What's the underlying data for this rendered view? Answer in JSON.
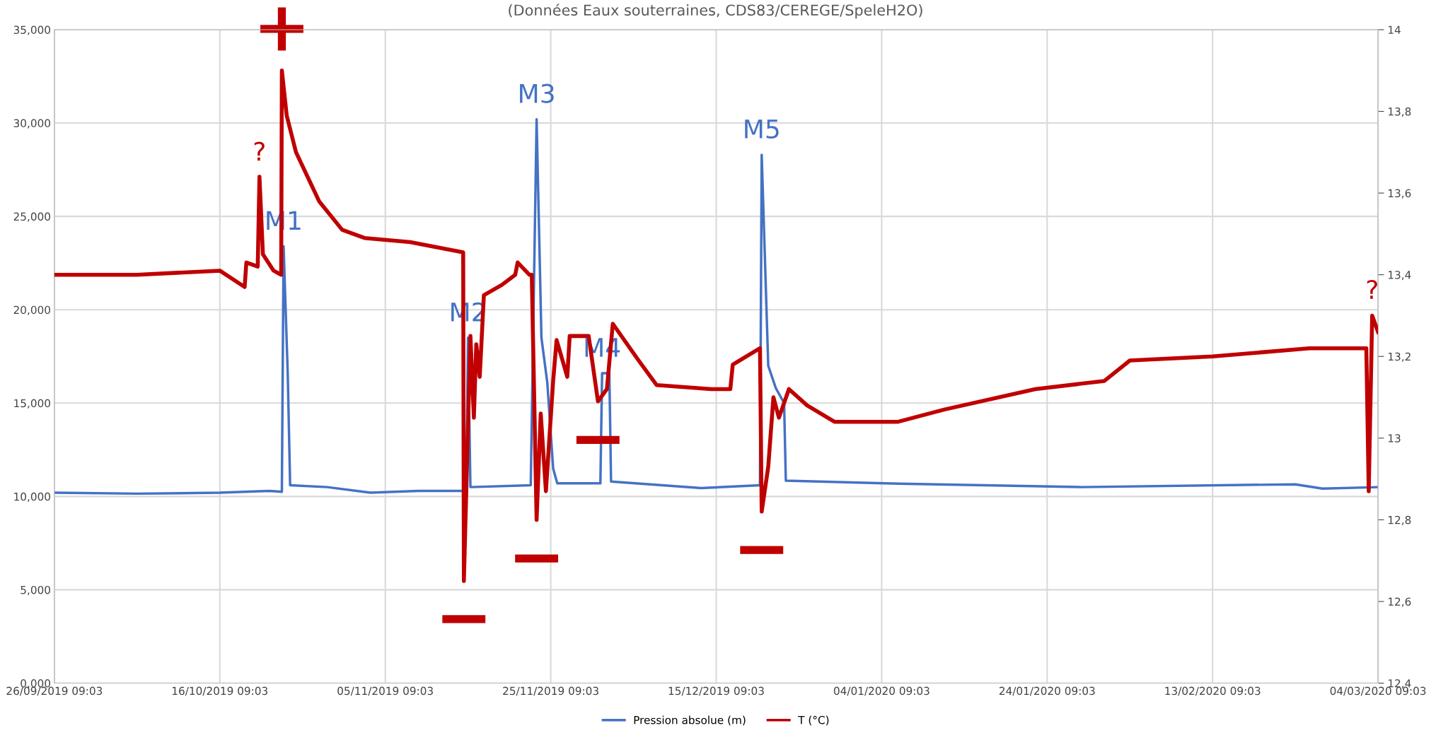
{
  "chart_data": {
    "type": "line",
    "subtitle": "(Données Eaux souterraines, CDS83/CEREGE/SpeleH2O)",
    "xlim": [
      "2019-09-26T09:03",
      "2020-03-04T09:03"
    ],
    "xticks": [
      {
        "value": "2019-09-26T09:03",
        "label": "26/09/2019 09:03"
      },
      {
        "value": "2019-10-16T09:03",
        "label": "16/10/2019 09:03"
      },
      {
        "value": "2019-11-05T09:03",
        "label": "05/11/2019 09:03"
      },
      {
        "value": "2019-11-25T09:03",
        "label": "25/11/2019 09:03"
      },
      {
        "value": "2019-12-15T09:03",
        "label": "15/12/2019 09:03"
      },
      {
        "value": "2020-01-04T09:03",
        "label": "04/01/2020 09:03"
      },
      {
        "value": "2020-01-24T09:03",
        "label": "24/01/2020 09:03"
      },
      {
        "value": "2020-02-13T09:03",
        "label": "13/02/2020 09:03"
      },
      {
        "value": "2020-03-04T09:03",
        "label": "04/03/2020 09:03"
      }
    ],
    "ylim": [
      0,
      35
    ],
    "yticks": [
      {
        "value": 0,
        "label": "0,000"
      },
      {
        "value": 5,
        "label": "5,000"
      },
      {
        "value": 10,
        "label": "10,000"
      },
      {
        "value": 15,
        "label": "15,000"
      },
      {
        "value": 20,
        "label": "20,000"
      },
      {
        "value": 25,
        "label": "25,000"
      },
      {
        "value": 30,
        "label": "30,000"
      },
      {
        "value": 35,
        "label": "35,000"
      }
    ],
    "y2lim": [
      12.4,
      14
    ],
    "y2ticks": [
      {
        "value": 12.4,
        "label": "12,4"
      },
      {
        "value": 12.6,
        "label": "12,6"
      },
      {
        "value": 12.8,
        "label": "12,8"
      },
      13,
      {
        "value": 13.2,
        "label": "13,2"
      },
      {
        "value": 13.4,
        "label": "13,4"
      },
      {
        "value": 13.6,
        "label": "13,6"
      },
      {
        "value": 13.8,
        "label": "13,8"
      },
      14
    ],
    "grid": true,
    "legend": "bottom",
    "marker": "none",
    "line_style": "solid",
    "series": [
      {
        "name": "Pression absolue (m)",
        "color": "#4472c4",
        "x": [
          "2019-09-26T09:03",
          "2019-10-06T09:00",
          "2019-10-16T09:00",
          "2019-10-22T09:00",
          "2019-10-23T21:00",
          "2019-10-24T02:00",
          "2019-10-24T14:00",
          "2019-10-24T21:00",
          "2019-10-29T09:00",
          "2019-11-03T14:00",
          "2019-11-09T09:00",
          "2019-11-15T04:00",
          "2019-11-15T09:00",
          "2019-11-15T16:00",
          "2019-11-22T23:00",
          "2019-11-23T16:00",
          "2019-11-24T06:00",
          "2019-11-24T23:00",
          "2019-11-25T16:00",
          "2019-11-26T04:00",
          "2019-12-01T09:00",
          "2019-12-01T14:00",
          "2019-12-02T11:00",
          "2019-12-02T16:00",
          "2019-12-13T14:00",
          "2019-12-20T16:00",
          "2019-12-20T21:00",
          "2019-12-21T16:00",
          "2019-12-22T14:00",
          "2019-12-23T14:00",
          "2019-12-23T19:00",
          "2020-01-04T18:00",
          "2020-01-28T12:00",
          "2020-02-23T09:00",
          "2020-02-26T16:00",
          "2020-03-04T09:03"
        ],
        "values": [
          10.2,
          10.15,
          10.2,
          10.3,
          10.25,
          23.4,
          16.6,
          10.6,
          10.5,
          10.2,
          10.3,
          10.3,
          18.5,
          10.5,
          10.6,
          30.2,
          18.5,
          16.1,
          11.5,
          10.7,
          10.7,
          16.6,
          16.6,
          10.8,
          10.45,
          10.6,
          28.3,
          17.0,
          15.8,
          15.0,
          10.85,
          10.7,
          10.5,
          10.65,
          10.42,
          10.5
        ]
      },
      {
        "name": "T (°C)",
        "color": "#c00000",
        "axis": "y2",
        "x": [
          "2019-09-26T09:03",
          "2019-10-06T09:00",
          "2019-10-16T09:00",
          "2019-10-19T09:00",
          "2019-10-19T14:00",
          "2019-10-20T23:00",
          "2019-10-21T04:00",
          "2019-10-21T14:00",
          "2019-10-22T21:00",
          "2019-10-23T19:00",
          "2019-10-23T21:00",
          "2019-10-24T11:00",
          "2019-10-25T14:00",
          "2019-10-28T09:00",
          "2019-10-31T04:00",
          "2019-11-02T21:00",
          "2019-11-08T09:00",
          "2019-11-14T19:00",
          "2019-11-14T21:00",
          "2019-11-15T16:00",
          "2019-11-16T02:00",
          "2019-11-16T09:00",
          "2019-11-16T19:00",
          "2019-11-17T07:00",
          "2019-11-19T11:00",
          "2019-11-21T02:00",
          "2019-11-21T09:00",
          "2019-11-22T19:00",
          "2019-11-23T02:00",
          "2019-11-23T16:00",
          "2019-11-24T04:00",
          "2019-11-24T19:00",
          "2019-11-25T16:00",
          "2019-11-26T02:00",
          "2019-11-27T09:00",
          "2019-11-27T16:00",
          "2019-11-29T23:00",
          "2019-12-01T02:00",
          "2019-12-02T04:00",
          "2019-12-02T21:00",
          "2019-12-06T00:00",
          "2019-12-08T04:00",
          "2019-12-14T19:00",
          "2019-12-17T02:00",
          "2019-12-17T09:00",
          "2019-12-20T16:00",
          "2019-12-20T21:00",
          "2019-12-21T16:00",
          "2019-12-22T07:00",
          "2019-12-22T23:00",
          "2019-12-24T04:00",
          "2019-12-26T09:00",
          "2019-12-29T16:00",
          "2020-01-06T09:00",
          "2020-01-11T23:00",
          "2020-01-22T23:00",
          "2020-01-31T07:00",
          "2020-02-03T09:00",
          "2020-02-13T09:00",
          "2020-02-25T02:00",
          "2020-03-02T23:00",
          "2020-03-03T06:00",
          "2020-03-03T16:00",
          "2020-03-04T09:03"
        ],
        "values": [
          13.4,
          13.4,
          13.41,
          13.37,
          13.43,
          13.42,
          13.64,
          13.45,
          13.41,
          13.4,
          13.9,
          13.79,
          13.7,
          13.58,
          13.51,
          13.49,
          13.48,
          13.455,
          12.65,
          13.25,
          13.05,
          13.23,
          13.15,
          13.35,
          13.375,
          13.4,
          13.43,
          13.4,
          13.4,
          12.8,
          13.06,
          12.87,
          13.14,
          13.24,
          13.15,
          13.25,
          13.25,
          13.09,
          13.12,
          13.28,
          13.19,
          13.13,
          13.12,
          13.12,
          13.18,
          13.22,
          12.82,
          12.93,
          13.1,
          13.05,
          13.12,
          13.08,
          13.04,
          13.04,
          13.07,
          13.12,
          13.14,
          13.19,
          13.2,
          13.22,
          13.22,
          12.87,
          13.3,
          13.26
        ]
      }
    ],
    "annotations": [
      {
        "text": "M1",
        "x": "2019-10-24T02:00",
        "y": 23.4
      },
      {
        "text": "M2",
        "x": "2019-11-15T09:00",
        "y": 18.5
      },
      {
        "text": "M3",
        "x": "2019-11-23T16:00",
        "y": 30.2
      },
      {
        "text": "M4",
        "x": "2019-12-01T14:00",
        "y": 16.6
      },
      {
        "text": "M5",
        "x": "2019-12-20T21:00",
        "y": 28.3
      },
      {
        "text": "?",
        "x": "2019-10-21T04:00",
        "y": 27.1
      },
      {
        "text": "?",
        "x": "2020-03-03T16:00",
        "y": 19.7
      },
      {
        "text": "+",
        "x": "2019-10-23T21:00",
        "y": 32.8
      },
      {
        "text": "−",
        "x": "2019-11-14T21:00",
        "y": 5.5
      },
      {
        "text": "−",
        "x": "2019-11-23T16:00",
        "y": 8.75
      },
      {
        "text": "−",
        "x": "2019-12-01T02:00",
        "y": 15.1
      },
      {
        "text": "−",
        "x": "2019-12-20T21:00",
        "y": 9.2
      }
    ]
  }
}
